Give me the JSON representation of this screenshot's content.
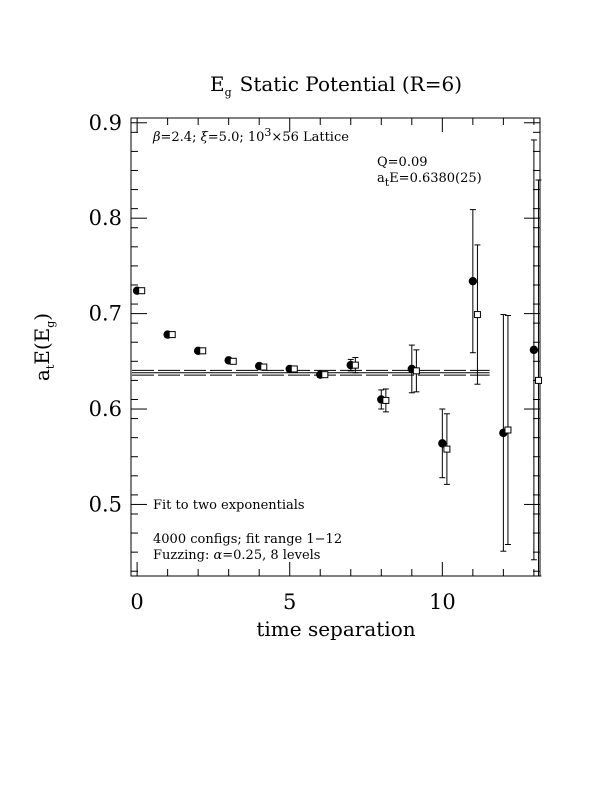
{
  "chart_data": {
    "type": "scatter",
    "title": "E_g Static Potential (R=6)",
    "title_parts": {
      "e": "E",
      "e_sub": "g",
      "rest": "Static Potential (R=6)"
    },
    "xlabel": "time separation",
    "ylabel": "a_tE(E_g)",
    "ylabel_parts": {
      "a": "a",
      "a_sub": "t",
      "mid": "E(E",
      "g_sub": "g",
      "close": ")"
    },
    "xlim": [
      -0.2,
      13.2
    ],
    "ylim": [
      0.425,
      0.905
    ],
    "x_ticks": [
      0,
      5,
      10
    ],
    "x_tick_labels": [
      "0",
      "5",
      "10"
    ],
    "y_ticks": [
      0.5,
      0.6,
      0.7,
      0.8,
      0.9
    ],
    "y_tick_labels": [
      "0.5",
      "0.6",
      "0.7",
      "0.8",
      "0.9"
    ],
    "grid": false,
    "annotations": {
      "lattice": {
        "beta": "β",
        "beta_val": "=2.4; ",
        "xi": "ξ",
        "xi_val": "=5.0; 10",
        "sup3": "3",
        "size": "×56 Lattice"
      },
      "q": "Q=0.09",
      "energy": {
        "a": "a",
        "sub": "t",
        "rest": "E=0.6380(25)"
      },
      "fit": "Fit to two exponentials",
      "configs": "4000 configs; fit range 1−12",
      "fuzzing": {
        "pre": "Fuzzing: ",
        "alpha": "α",
        "post": "=0.25, 8 levels"
      }
    },
    "fit": {
      "value": 0.638,
      "error": 0.0025,
      "x_range": [
        -0.2,
        11.55
      ]
    },
    "series": [
      {
        "marker": "filled-circle",
        "points": [
          {
            "x": 0,
            "y": 0.724,
            "err": 0.002
          },
          {
            "x": 1,
            "y": 0.678,
            "err": 0.002
          },
          {
            "x": 2,
            "y": 0.661,
            "err": 0.002
          },
          {
            "x": 3,
            "y": 0.651,
            "err": 0.002
          },
          {
            "x": 4,
            "y": 0.645,
            "err": 0.002
          },
          {
            "x": 5,
            "y": 0.642,
            "err": 0.002
          },
          {
            "x": 6,
            "y": 0.636,
            "err": 0.002
          },
          {
            "x": 7,
            "y": 0.646,
            "err": 0.006
          },
          {
            "x": 8,
            "y": 0.61,
            "err": 0.01
          },
          {
            "x": 9,
            "y": 0.642,
            "err": 0.025
          },
          {
            "x": 10,
            "y": 0.564,
            "err": 0.036
          },
          {
            "x": 11,
            "y": 0.734,
            "err": 0.075
          },
          {
            "x": 12,
            "y": 0.575,
            "err": 0.124
          },
          {
            "x": 13,
            "y": 0.662,
            "err": 0.22
          }
        ]
      },
      {
        "marker": "open-square",
        "points": [
          {
            "x": 0.15,
            "y": 0.724,
            "err": 0.002
          },
          {
            "x": 1.15,
            "y": 0.678,
            "err": 0.002
          },
          {
            "x": 2.15,
            "y": 0.661,
            "err": 0.002
          },
          {
            "x": 3.15,
            "y": 0.65,
            "err": 0.002
          },
          {
            "x": 4.15,
            "y": 0.644,
            "err": 0.002
          },
          {
            "x": 5.15,
            "y": 0.642,
            "err": 0.002
          },
          {
            "x": 6.15,
            "y": 0.636,
            "err": 0.002
          },
          {
            "x": 7.15,
            "y": 0.646,
            "err": 0.008
          },
          {
            "x": 8.15,
            "y": 0.609,
            "err": 0.012
          },
          {
            "x": 9.15,
            "y": 0.64,
            "err": 0.022
          },
          {
            "x": 10.15,
            "y": 0.558,
            "err": 0.037
          },
          {
            "x": 11.15,
            "y": 0.699,
            "err": 0.073
          },
          {
            "x": 12.15,
            "y": 0.578,
            "err": 0.12
          },
          {
            "x": 13.15,
            "y": 0.63,
            "err": 0.21
          }
        ]
      }
    ]
  }
}
